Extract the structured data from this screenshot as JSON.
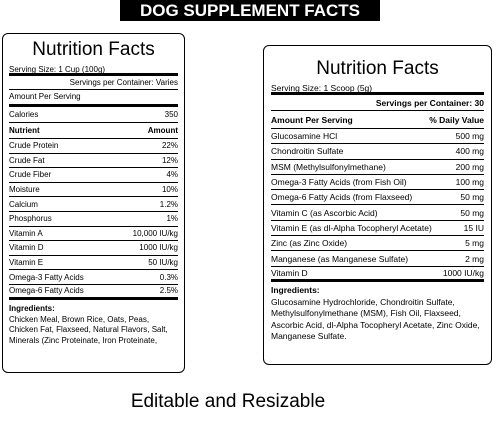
{
  "banner": "DOG SUPPLEMENT FACTS",
  "panels": [
    {
      "title": "Nutrition Facts",
      "serving_size": "Serving Size: 1 Cup (100g)",
      "servings_per_container": "Servings per Container: Varies",
      "amount_per_serving": "Amount Per Serving",
      "calories": [
        "Calories",
        "350"
      ],
      "column_headers": [
        "Nutrient",
        "Amount"
      ],
      "rows": [
        [
          "Crude Protein",
          "22%"
        ],
        [
          "Crude Fat",
          "12%"
        ],
        [
          "Crude Fiber",
          "4%"
        ],
        [
          "Moisture",
          "10%"
        ],
        [
          "Calcium",
          "1.2%"
        ],
        [
          "Phosphorus",
          "1%"
        ],
        [
          "Vitamin A",
          "10,000 IU/kg"
        ],
        [
          "Vitamin D",
          "1000 IU/kg"
        ],
        [
          "Vitamin E",
          "50 IU/kg"
        ],
        [
          "Omega-3 Fatty Acids",
          "0.3%"
        ],
        [
          "Omega-6 Fatty Acids",
          "2.5%"
        ]
      ],
      "ingredients_label": "Ingredients:",
      "ingredients": "Chicken Meal, Brown Rice, Oats, Peas, Chicken Fat, Flaxseed, Natural Flavors, Salt, Minerals (Zinc Proteinate, Iron Proteinate,"
    },
    {
      "title": "Nutrition Facts",
      "serving_size": "Serving Size: 1 Scoop (5g)",
      "servings_per_container": "Servings per Container: 30",
      "column_headers": [
        "Amount Per Serving",
        "% Daily Value"
      ],
      "rows": [
        [
          "Glucosamine HCl",
          "500 mg"
        ],
        [
          "Chondroitin Sulfate",
          "400 mg"
        ],
        [
          "MSM (Methylsulfonylmethane)",
          "200 mg"
        ],
        [
          "Omega-3 Fatty Acids (from Fish Oil)",
          "100 mg"
        ],
        [
          "Omega-6 Fatty Acids (from Flaxseed)",
          "50 mg"
        ],
        [
          "Vitamin C (as Ascorbic Acid)",
          "50 mg"
        ],
        [
          "Vitamin E (as dl-Alpha Tocopheryl Acetate)",
          "15 IU"
        ],
        [
          "Zinc (as Zinc Oxide)",
          "5 mg"
        ],
        [
          "Manganese (as Manganese Sulfate)",
          "2 mg"
        ],
        [
          "Vitamin D",
          "1000 IU/kg"
        ]
      ],
      "ingredients_label": "Ingredients:",
      "ingredients": "Glucosamine Hydrochloride, Chondroitin Sulfate, Methylsulfonylmethane (MSM), Fish Oil, Flaxseed, Ascorbic Acid, dl-Alpha Tocopheryl Acetate, Zinc Oxide, Manganese Sulfate."
    }
  ],
  "footer": "Editable and Resizable"
}
